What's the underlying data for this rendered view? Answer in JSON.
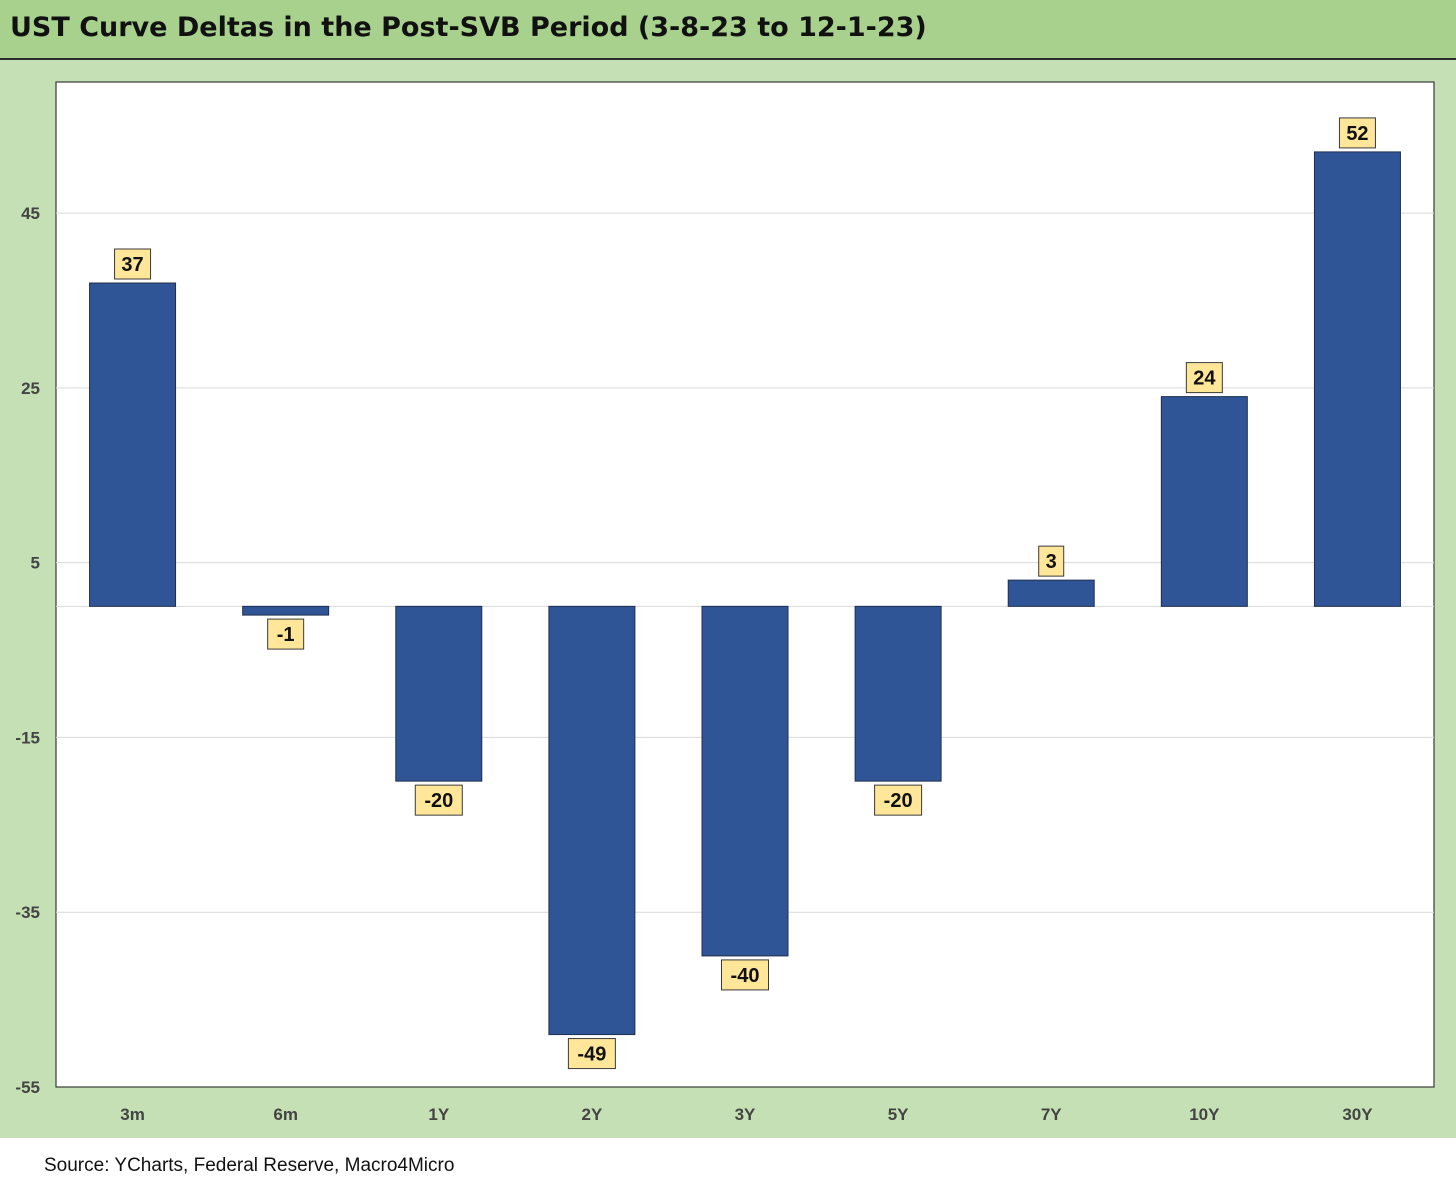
{
  "title": "UST Curve Deltas in the Post-SVB Period (3-8-23 to 12-1-23)",
  "source": "Source: YCharts, Federal Reserve, Macro4Micro",
  "colors": {
    "bar": "#2f5597",
    "bar_border": "#1f2f4f",
    "label_bg": "#ffe699",
    "title_bg": "#a9d18e",
    "chart_bg": "#c5e0b4"
  },
  "chart_data": {
    "type": "bar",
    "title": "UST Curve Deltas in the Post-SVB Period (3-8-23 to 12-1-23)",
    "categories": [
      "3m",
      "6m",
      "1Y",
      "2Y",
      "3Y",
      "5Y",
      "7Y",
      "10Y",
      "30Y"
    ],
    "values": [
      37,
      -1,
      -20,
      -49,
      -40,
      -20,
      3,
      24,
      52
    ],
    "data_labels": [
      "37",
      "-1",
      "-20",
      "-49",
      "-40",
      "-20",
      "3",
      "24",
      "52"
    ],
    "y_ticks": [
      45,
      25,
      5,
      -15,
      -35,
      -55
    ],
    "y_tick_labels": [
      "45",
      "25",
      "5",
      "-15",
      "-35",
      "-55"
    ],
    "ylim": [
      -55,
      60
    ],
    "grid": true,
    "legend": "none",
    "xlabel": "",
    "ylabel": ""
  }
}
